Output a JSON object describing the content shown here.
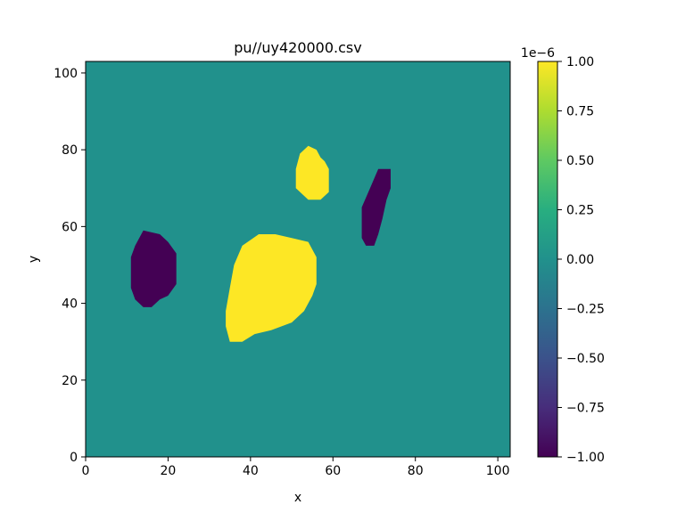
{
  "chart_data": {
    "type": "heatmap",
    "title": "pu//uy420000.csv",
    "xlabel": "x",
    "ylabel": "y",
    "xlim": [
      0,
      103
    ],
    "ylim": [
      0,
      103
    ],
    "x_ticks": [
      0,
      20,
      40,
      60,
      80,
      100
    ],
    "y_ticks": [
      0,
      20,
      40,
      60,
      80,
      100
    ],
    "grid": false,
    "colormap": "viridis",
    "background_value": 0.0,
    "colorbar": {
      "range": [
        -1.0,
        1.0
      ],
      "offset_label": "1e−6",
      "ticks": [
        1.0,
        0.75,
        0.5,
        0.25,
        0.0,
        -0.25,
        -0.5,
        -0.75,
        -1.0
      ],
      "tick_labels": [
        "1.00",
        "0.75",
        "0.50",
        "0.25",
        "0.00",
        "−0.25",
        "−0.50",
        "−0.75",
        "−1.00"
      ]
    },
    "regions": [
      {
        "value": -1.0,
        "polygon": [
          [
            14,
            39
          ],
          [
            16,
            39
          ],
          [
            18,
            41
          ],
          [
            20,
            42
          ],
          [
            22,
            45
          ],
          [
            22,
            53
          ],
          [
            20,
            56
          ],
          [
            18,
            58
          ],
          [
            14,
            59
          ],
          [
            12,
            55
          ],
          [
            11,
            52
          ],
          [
            11,
            44
          ],
          [
            12,
            41
          ]
        ]
      },
      {
        "value": 1.0,
        "polygon": [
          [
            35,
            30
          ],
          [
            38,
            30
          ],
          [
            41,
            32
          ],
          [
            45,
            33
          ],
          [
            50,
            35
          ],
          [
            53,
            38
          ],
          [
            55,
            42
          ],
          [
            56,
            45
          ],
          [
            56,
            52
          ],
          [
            54,
            56
          ],
          [
            50,
            57
          ],
          [
            46,
            58
          ],
          [
            42,
            58
          ],
          [
            38,
            55
          ],
          [
            36,
            50
          ],
          [
            35,
            44
          ],
          [
            34,
            38
          ],
          [
            34,
            34
          ]
        ]
      },
      {
        "value": 1.0,
        "polygon": [
          [
            54,
            81
          ],
          [
            56,
            80
          ],
          [
            57,
            78
          ],
          [
            58,
            77
          ],
          [
            59,
            75
          ],
          [
            59,
            69
          ],
          [
            57,
            67
          ],
          [
            54,
            67
          ],
          [
            51,
            70
          ],
          [
            51,
            75
          ],
          [
            52,
            79
          ]
        ]
      },
      {
        "value": -1.0,
        "polygon": [
          [
            71,
            75
          ],
          [
            74,
            75
          ],
          [
            74,
            70
          ],
          [
            73,
            67
          ],
          [
            72,
            62
          ],
          [
            71,
            58
          ],
          [
            70,
            55
          ],
          [
            68,
            55
          ],
          [
            67,
            57
          ],
          [
            67,
            65
          ],
          [
            69,
            70
          ]
        ]
      }
    ]
  }
}
